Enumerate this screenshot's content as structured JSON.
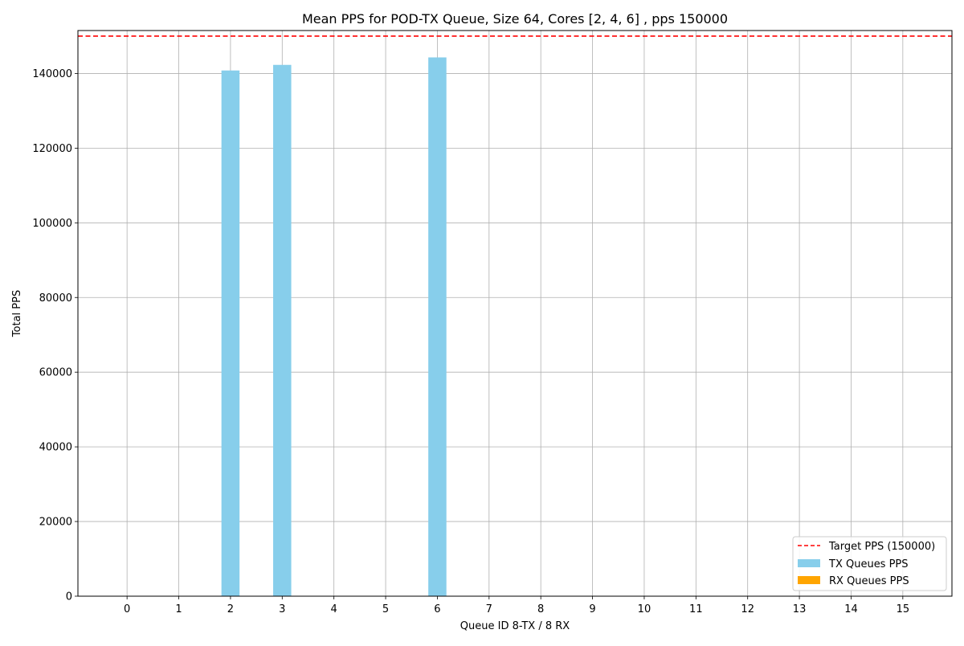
{
  "chart_data": {
    "type": "bar",
    "title": "Mean PPS for POD-TX Queue, Size 64, Cores [2, 4, 6] , pps 150000",
    "xlabel": "Queue ID 8-TX / 8 RX",
    "ylabel": "Total PPS",
    "categories": [
      "0",
      "1",
      "2",
      "3",
      "4",
      "5",
      "6",
      "7",
      "8",
      "9",
      "10",
      "11",
      "12",
      "13",
      "14",
      "15"
    ],
    "series": [
      {
        "name": "TX Queues PPS",
        "color": "#87ceeb",
        "values": [
          0,
          0,
          140800,
          142300,
          0,
          0,
          144300,
          0,
          0,
          0,
          0,
          0,
          0,
          0,
          0,
          0
        ]
      },
      {
        "name": "RX Queues PPS",
        "color": "#ffa500",
        "values": [
          0,
          0,
          0,
          0,
          0,
          0,
          0,
          0,
          0,
          0,
          0,
          0,
          0,
          0,
          0,
          0
        ]
      }
    ],
    "reference_line": {
      "name": "Target PPS (150000)",
      "value": 150000,
      "color": "#ff0000",
      "style": "dashed"
    },
    "ylim": [
      0,
      151500
    ],
    "xlim": [
      -0.95,
      15.95
    ],
    "yticks": [
      0,
      20000,
      40000,
      60000,
      80000,
      100000,
      120000,
      140000
    ],
    "grid": true,
    "legend_position": "lower-right"
  }
}
